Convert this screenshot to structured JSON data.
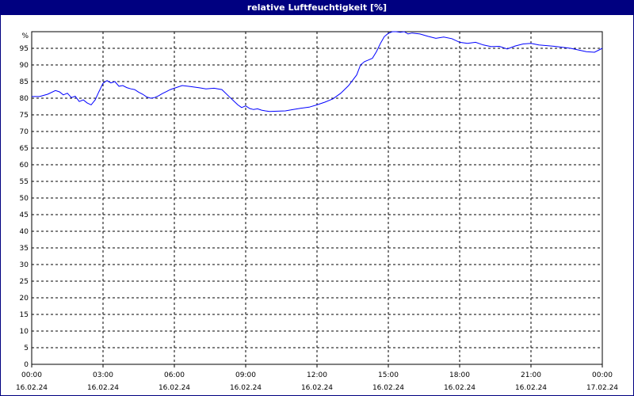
{
  "window": {
    "title": "relative Luftfeuchtigkeit [%]"
  },
  "colors": {
    "titlebar": "#000080",
    "line": "#0000ff",
    "grid": "#000000",
    "background": "#ffffff"
  },
  "chart_data": {
    "type": "line",
    "title": "relative Luftfeuchtigkeit [%]",
    "ylabel": "%",
    "ylim": [
      0,
      100
    ],
    "ytick_step": 5,
    "grid": true,
    "legend": "none",
    "xlim_hours": [
      0,
      24
    ],
    "x_ticks": [
      {
        "hour": 0,
        "time": "00:00",
        "date": "16.02.24"
      },
      {
        "hour": 3,
        "time": "03:00",
        "date": "16.02.24"
      },
      {
        "hour": 6,
        "time": "06:00",
        "date": "16.02.24"
      },
      {
        "hour": 9,
        "time": "09:00",
        "date": "16.02.24"
      },
      {
        "hour": 12,
        "time": "12:00",
        "date": "16.02.24"
      },
      {
        "hour": 15,
        "time": "15:00",
        "date": "16.02.24"
      },
      {
        "hour": 18,
        "time": "18:00",
        "date": "16.02.24"
      },
      {
        "hour": 21,
        "time": "21:00",
        "date": "16.02.24"
      },
      {
        "hour": 24,
        "time": "00:00",
        "date": "17.02.24"
      }
    ],
    "series": [
      {
        "x_hours": [
          0,
          0.33,
          0.67,
          1.0,
          1.17,
          1.33,
          1.5,
          1.67,
          1.83,
          2.0,
          2.17,
          2.33,
          2.5,
          2.67,
          2.83,
          3.0,
          3.17,
          3.33,
          3.5,
          3.67,
          3.83,
          4.0,
          4.17,
          4.33,
          4.5,
          4.67,
          4.83,
          5.0,
          5.17,
          5.33,
          5.5,
          5.67,
          5.83,
          6.0,
          6.33,
          6.67,
          7.0,
          7.33,
          7.67,
          8.0,
          8.33,
          8.67,
          8.83,
          9.0,
          9.17,
          9.33,
          9.5,
          9.67,
          9.83,
          10.0,
          10.33,
          10.67,
          11.0,
          11.33,
          11.67,
          12.0,
          12.33,
          12.67,
          13.0,
          13.33,
          13.67,
          13.83,
          14.0,
          14.17,
          14.33,
          14.5,
          14.67,
          14.83,
          15.0,
          15.17,
          15.33,
          15.5,
          15.67,
          15.83,
          16.0,
          16.33,
          16.67,
          17.0,
          17.33,
          17.67,
          18.0,
          18.33,
          18.67,
          19.0,
          19.33,
          19.67,
          20.0,
          20.33,
          20.67,
          21.0,
          21.33,
          21.67,
          22.0,
          22.33,
          22.67,
          23.0,
          23.33,
          23.67,
          24.0
        ],
        "y": [
          80.5,
          80.5,
          81.2,
          82.3,
          81.9,
          81.0,
          81.5,
          80.2,
          80.6,
          79.0,
          79.5,
          78.6,
          78.0,
          79.5,
          82.0,
          84.5,
          85.3,
          84.6,
          85.0,
          83.6,
          83.8,
          83.2,
          82.8,
          82.6,
          81.8,
          81.2,
          80.4,
          80.0,
          80.2,
          80.7,
          81.4,
          82.0,
          82.6,
          83.0,
          83.8,
          83.5,
          83.2,
          82.8,
          83.0,
          82.6,
          80.3,
          78.0,
          77.2,
          77.7,
          76.9,
          76.6,
          76.8,
          76.4,
          76.2,
          76.0,
          76.1,
          76.2,
          76.6,
          77.0,
          77.3,
          78.0,
          78.8,
          79.8,
          81.5,
          83.8,
          87.0,
          90.0,
          91.0,
          91.5,
          92.0,
          94.0,
          96.5,
          98.5,
          99.5,
          100.0,
          100.0,
          99.8,
          100.0,
          99.3,
          99.6,
          99.3,
          98.6,
          98.0,
          98.4,
          97.9,
          96.8,
          96.5,
          96.8,
          96.0,
          95.5,
          95.6,
          94.8,
          95.7,
          96.3,
          96.5,
          96.0,
          95.8,
          95.6,
          95.3,
          95.0,
          94.5,
          94.0,
          93.8,
          95.0
        ]
      }
    ]
  }
}
